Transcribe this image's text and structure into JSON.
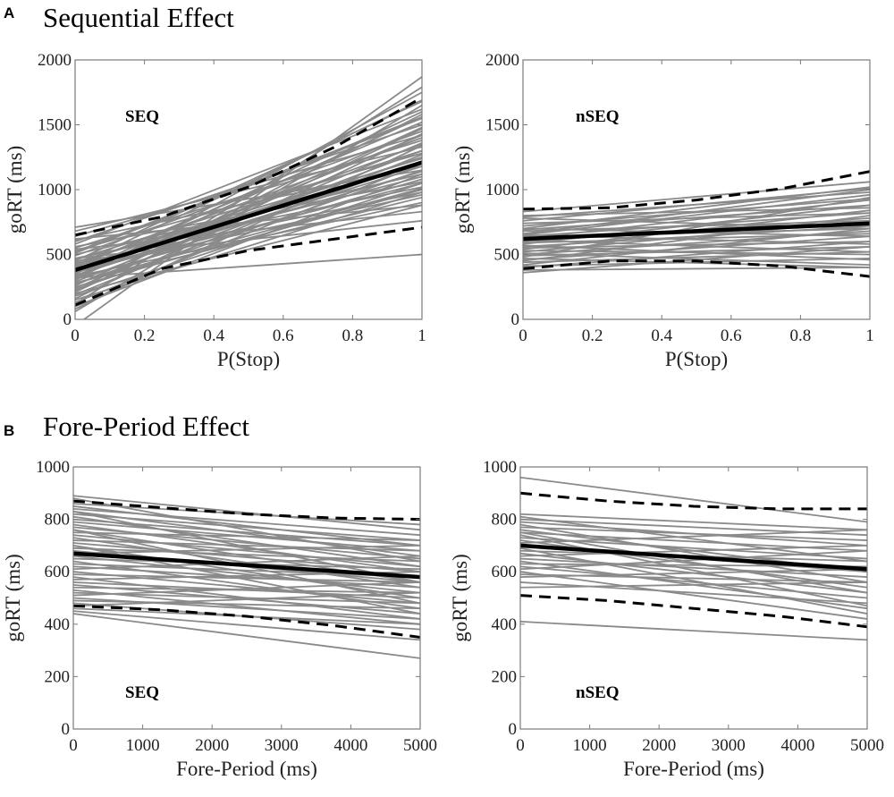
{
  "panels": {
    "A": {
      "letter": "A",
      "title": "Sequential Effect"
    },
    "B": {
      "letter": "B",
      "title": "Fore-Period Effect"
    }
  },
  "chart_data": [
    {
      "id": "A-SEQ",
      "type": "line",
      "group_label": "SEQ",
      "xlabel": "P(Stop)",
      "ylabel": "goRT (ms)",
      "xlim": [
        0,
        1
      ],
      "ylim": [
        0,
        2000
      ],
      "xticks": [
        0,
        0.2,
        0.4,
        0.6,
        0.8,
        1
      ],
      "xtick_labels": [
        "0",
        "0.2",
        "0.4",
        "0.6",
        "0.8",
        "1"
      ],
      "yticks": [
        0,
        500,
        1000,
        1500,
        2000
      ],
      "ytick_labels": [
        "0",
        "500",
        "1000",
        "1500",
        "2000"
      ],
      "mean": {
        "x": [
          0,
          1
        ],
        "y": [
          380,
          1210
        ]
      },
      "ci_upper": {
        "x": [
          0,
          0.25,
          0.5,
          0.75,
          1
        ],
        "y": [
          650,
          790,
          1020,
          1330,
          1710
        ]
      },
      "ci_lower": {
        "x": [
          0,
          0.25,
          0.5,
          0.75,
          1
        ],
        "y": [
          110,
          390,
          530,
          620,
          710
        ]
      },
      "individual_lines": [
        [
          710,
          1150
        ],
        [
          680,
          1330
        ],
        [
          640,
          1420
        ],
        [
          610,
          1180
        ],
        [
          600,
          1500
        ],
        [
          580,
          1620
        ],
        [
          560,
          1060
        ],
        [
          550,
          1380
        ],
        [
          530,
          1280
        ],
        [
          520,
          1560
        ],
        [
          500,
          1120
        ],
        [
          490,
          1450
        ],
        [
          470,
          1020
        ],
        [
          460,
          1300
        ],
        [
          450,
          1680
        ],
        [
          440,
          1200
        ],
        [
          430,
          980
        ],
        [
          420,
          1400
        ],
        [
          410,
          1100
        ],
        [
          400,
          1520
        ],
        [
          390,
          1250
        ],
        [
          380,
          960
        ],
        [
          370,
          1350
        ],
        [
          360,
          1050
        ],
        [
          350,
          1600
        ],
        [
          340,
          1180
        ],
        [
          330,
          900
        ],
        [
          320,
          1420
        ],
        [
          310,
          1080
        ],
        [
          300,
          1750
        ],
        [
          290,
          1300
        ],
        [
          280,
          940
        ],
        [
          270,
          1220
        ],
        [
          260,
          1480
        ],
        [
          250,
          1000
        ],
        [
          240,
          1360
        ],
        [
          230,
          1150
        ],
        [
          220,
          1580
        ],
        [
          200,
          880
        ],
        [
          190,
          1270
        ],
        [
          180,
          1050
        ],
        [
          160,
          1430
        ],
        [
          150,
          980
        ],
        [
          130,
          1200
        ],
        [
          120,
          1790
        ],
        [
          100,
          1120
        ],
        [
          80,
          1340
        ],
        [
          60,
          1650
        ],
        [
          620,
          880
        ],
        [
          540,
          830
        ],
        [
          470,
          760
        ],
        [
          320,
          500
        ],
        [
          -50,
          1870
        ],
        [
          440,
          1240
        ],
        [
          360,
          1140
        ],
        [
          280,
          1010
        ],
        [
          510,
          1550
        ],
        [
          410,
          1690
        ],
        [
          330,
          1560
        ],
        [
          210,
          1470
        ]
      ]
    },
    {
      "id": "A-nSEQ",
      "type": "line",
      "group_label": "nSEQ",
      "xlabel": "P(Stop)",
      "ylabel": "goRT (ms)",
      "xlim": [
        0,
        1
      ],
      "ylim": [
        0,
        2000
      ],
      "xticks": [
        0,
        0.2,
        0.4,
        0.6,
        0.8,
        1
      ],
      "xtick_labels": [
        "0",
        "0.2",
        "0.4",
        "0.6",
        "0.8",
        "1"
      ],
      "yticks": [
        0,
        500,
        1000,
        1500,
        2000
      ],
      "ytick_labels": [
        "0",
        "500",
        "1000",
        "1500",
        "2000"
      ],
      "mean": {
        "x": [
          0,
          1
        ],
        "y": [
          620,
          740
        ]
      },
      "ci_upper": {
        "x": [
          0,
          0.25,
          0.5,
          0.75,
          1
        ],
        "y": [
          850,
          860,
          920,
          1010,
          1140
        ]
      },
      "ci_lower": {
        "x": [
          0,
          0.25,
          0.5,
          0.75,
          1
        ],
        "y": [
          390,
          450,
          450,
          410,
          330
        ]
      },
      "individual_lines": [
        [
          830,
          1060
        ],
        [
          800,
          860
        ],
        [
          790,
          980
        ],
        [
          780,
          700
        ],
        [
          760,
          1010
        ],
        [
          740,
          820
        ],
        [
          720,
          930
        ],
        [
          700,
          640
        ],
        [
          690,
          880
        ],
        [
          680,
          760
        ],
        [
          660,
          1000
        ],
        [
          650,
          580
        ],
        [
          640,
          820
        ],
        [
          630,
          700
        ],
        [
          620,
          920
        ],
        [
          610,
          520
        ],
        [
          600,
          780
        ],
        [
          590,
          660
        ],
        [
          580,
          880
        ],
        [
          570,
          460
        ],
        [
          560,
          720
        ],
        [
          550,
          600
        ],
        [
          540,
          840
        ],
        [
          530,
          500
        ],
        [
          520,
          760
        ],
        [
          510,
          420
        ],
        [
          500,
          680
        ],
        [
          490,
          560
        ],
        [
          480,
          940
        ],
        [
          470,
          400
        ],
        [
          460,
          640
        ],
        [
          450,
          800
        ],
        [
          440,
          520
        ],
        [
          420,
          700
        ],
        [
          410,
          470
        ],
        [
          400,
          600
        ],
        [
          380,
          400
        ],
        [
          360,
          560
        ],
        [
          700,
          1020
        ],
        [
          650,
          960
        ]
      ]
    },
    {
      "id": "B-SEQ",
      "type": "line",
      "group_label": "SEQ",
      "xlabel": "Fore-Period (ms)",
      "ylabel": "goRT (ms)",
      "xlim": [
        0,
        5000
      ],
      "ylim": [
        0,
        1000
      ],
      "xticks": [
        0,
        1000,
        2000,
        3000,
        4000,
        5000
      ],
      "xtick_labels": [
        "0",
        "1000",
        "2000",
        "3000",
        "4000",
        "5000"
      ],
      "yticks": [
        0,
        200,
        400,
        600,
        800,
        1000
      ],
      "ytick_labels": [
        "0",
        "200",
        "400",
        "600",
        "800",
        "1000"
      ],
      "mean": {
        "x": [
          0,
          5000
        ],
        "y": [
          670,
          580
        ]
      },
      "ci_upper": {
        "x": [
          0,
          1250,
          2500,
          3750,
          5000
        ],
        "y": [
          870,
          845,
          820,
          805,
          800
        ]
      },
      "ci_lower": {
        "x": [
          0,
          1250,
          2500,
          3750,
          5000
        ],
        "y": [
          470,
          455,
          430,
          395,
          350
        ]
      },
      "individual_lines": [
        [
          890,
          760
        ],
        [
          860,
          780
        ],
        [
          850,
          700
        ],
        [
          840,
          740
        ],
        [
          830,
          660
        ],
        [
          820,
          720
        ],
        [
          810,
          620
        ],
        [
          800,
          700
        ],
        [
          790,
          680
        ],
        [
          780,
          600
        ],
        [
          770,
          650
        ],
        [
          760,
          560
        ],
        [
          750,
          720
        ],
        [
          740,
          620
        ],
        [
          730,
          540
        ],
        [
          720,
          680
        ],
        [
          710,
          600
        ],
        [
          700,
          500
        ],
        [
          690,
          640
        ],
        [
          680,
          560
        ],
        [
          670,
          700
        ],
        [
          660,
          520
        ],
        [
          650,
          610
        ],
        [
          640,
          460
        ],
        [
          630,
          580
        ],
        [
          620,
          540
        ],
        [
          610,
          660
        ],
        [
          600,
          480
        ],
        [
          590,
          560
        ],
        [
          580,
          420
        ],
        [
          570,
          600
        ],
        [
          560,
          500
        ],
        [
          550,
          440
        ],
        [
          540,
          520
        ],
        [
          530,
          400
        ],
        [
          520,
          480
        ],
        [
          510,
          560
        ],
        [
          500,
          420
        ],
        [
          490,
          460
        ],
        [
          480,
          380
        ],
        [
          470,
          520
        ],
        [
          460,
          400
        ],
        [
          450,
          340
        ],
        [
          440,
          270
        ],
        [
          880,
          640
        ],
        [
          830,
          560
        ],
        [
          760,
          480
        ],
        [
          700,
          440
        ]
      ]
    },
    {
      "id": "B-nSEQ",
      "type": "line",
      "group_label": "nSEQ",
      "xlabel": "Fore-Period (ms)",
      "ylabel": "goRT (ms)",
      "xlim": [
        0,
        5000
      ],
      "ylim": [
        0,
        1000
      ],
      "xticks": [
        0,
        1000,
        2000,
        3000,
        4000,
        5000
      ],
      "xtick_labels": [
        "0",
        "1000",
        "2000",
        "3000",
        "4000",
        "5000"
      ],
      "yticks": [
        0,
        200,
        400,
        600,
        800,
        1000
      ],
      "ytick_labels": [
        "0",
        "200",
        "400",
        "600",
        "800",
        "1000"
      ],
      "mean": {
        "x": [
          0,
          5000
        ],
        "y": [
          700,
          610
        ]
      },
      "ci_upper": {
        "x": [
          0,
          1250,
          2500,
          3750,
          5000
        ],
        "y": [
          900,
          870,
          850,
          840,
          840
        ]
      },
      "ci_lower": {
        "x": [
          0,
          1250,
          2500,
          3750,
          5000
        ],
        "y": [
          510,
          490,
          460,
          430,
          390
        ]
      },
      "individual_lines": [
        [
          960,
          790
        ],
        [
          820,
          760
        ],
        [
          810,
          640
        ],
        [
          800,
          740
        ],
        [
          790,
          700
        ],
        [
          780,
          560
        ],
        [
          770,
          720
        ],
        [
          760,
          600
        ],
        [
          750,
          680
        ],
        [
          740,
          470
        ],
        [
          730,
          650
        ],
        [
          720,
          540
        ],
        [
          710,
          760
        ],
        [
          700,
          600
        ],
        [
          690,
          440
        ],
        [
          680,
          640
        ],
        [
          670,
          520
        ],
        [
          660,
          700
        ],
        [
          650,
          580
        ],
        [
          640,
          460
        ],
        [
          630,
          620
        ],
        [
          620,
          500
        ],
        [
          610,
          680
        ],
        [
          600,
          420
        ],
        [
          590,
          560
        ],
        [
          580,
          610
        ],
        [
          560,
          480
        ],
        [
          540,
          560
        ],
        [
          410,
          340
        ],
        [
          750,
          520
        ]
      ]
    }
  ]
}
